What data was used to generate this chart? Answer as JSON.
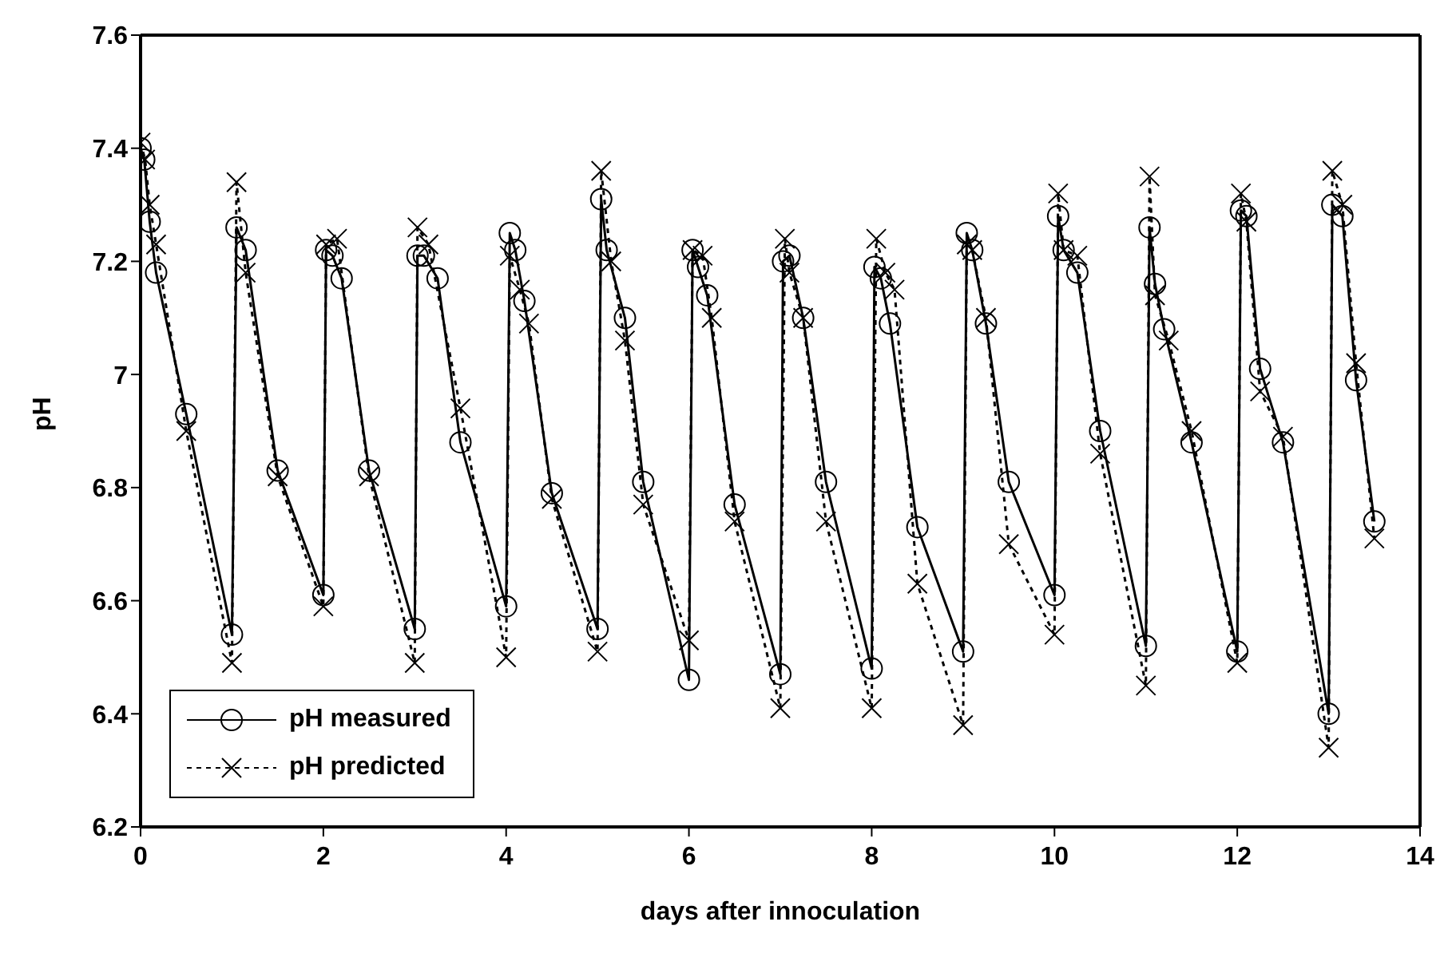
{
  "chart_data": {
    "type": "line",
    "xlabel": "days after innoculation",
    "ylabel": "pH",
    "xlim": [
      0,
      14
    ],
    "xticks": [
      0,
      2,
      4,
      6,
      8,
      10,
      12,
      14
    ],
    "ylim": [
      6.2,
      7.6
    ],
    "yticks": [
      6.2,
      6.4,
      6.6,
      6.8,
      7,
      7.2,
      7.4,
      7.6
    ],
    "legend": "bottom left",
    "series": [
      {
        "name": "pH measured",
        "color": "#000000",
        "marker": "circle",
        "line_style": "solid",
        "x": [
          0,
          0.04,
          0.1,
          0.17,
          0.5,
          1.0,
          1.05,
          1.15,
          1.5,
          2.0,
          2.03,
          2.1,
          2.2,
          2.5,
          3.0,
          3.03,
          3.1,
          3.25,
          3.5,
          4.0,
          4.04,
          4.1,
          4.2,
          4.5,
          5.0,
          5.04,
          5.1,
          5.3,
          5.5,
          6.0,
          6.04,
          6.1,
          6.2,
          6.5,
          7.0,
          7.03,
          7.1,
          7.25,
          7.5,
          8.0,
          8.03,
          8.1,
          8.2,
          8.5,
          9.0,
          9.04,
          9.1,
          9.25,
          9.5,
          10.0,
          10.04,
          10.1,
          10.25,
          10.5,
          11.0,
          11.04,
          11.1,
          11.2,
          11.5,
          12.0,
          12.04,
          12.1,
          12.25,
          12.5,
          13.0,
          13.04,
          13.15,
          13.3,
          13.5
        ],
        "values": [
          7.4,
          7.38,
          7.27,
          7.18,
          6.93,
          6.54,
          7.26,
          7.22,
          6.83,
          6.61,
          7.22,
          7.21,
          7.17,
          6.83,
          6.55,
          7.21,
          7.21,
          7.17,
          6.88,
          6.59,
          7.25,
          7.22,
          7.13,
          6.79,
          6.55,
          7.31,
          7.22,
          7.1,
          6.81,
          6.46,
          7.22,
          7.19,
          7.14,
          6.77,
          6.47,
          7.2,
          7.21,
          7.1,
          6.81,
          6.48,
          7.19,
          7.17,
          7.09,
          6.73,
          6.51,
          7.25,
          7.22,
          7.09,
          6.81,
          6.61,
          7.28,
          7.22,
          7.18,
          6.9,
          6.52,
          7.26,
          7.16,
          7.08,
          6.88,
          6.51,
          7.29,
          7.28,
          7.01,
          6.88,
          6.4,
          7.3,
          7.28,
          6.99,
          6.74
        ]
      },
      {
        "name": "pH predicted",
        "color": "#000000",
        "marker": "cross",
        "line_style": "dotted",
        "x": [
          0,
          0.05,
          0.1,
          0.17,
          0.5,
          1.0,
          1.05,
          1.15,
          1.5,
          2.0,
          2.03,
          2.15,
          2.5,
          3.0,
          3.03,
          3.15,
          3.5,
          4.0,
          4.04,
          4.15,
          4.25,
          4.5,
          5.0,
          5.04,
          5.15,
          5.3,
          5.5,
          6.0,
          6.04,
          6.15,
          6.25,
          6.5,
          7.0,
          7.05,
          7.1,
          7.25,
          7.5,
          8.0,
          8.05,
          8.15,
          8.25,
          8.5,
          9.0,
          9.04,
          9.1,
          9.25,
          9.5,
          10.0,
          10.04,
          10.1,
          10.25,
          10.5,
          11.0,
          11.04,
          11.1,
          11.25,
          11.5,
          12.0,
          12.04,
          12.1,
          12.25,
          12.5,
          13.0,
          13.04,
          13.15,
          13.3,
          13.5
        ],
        "values": [
          7.41,
          7.38,
          7.3,
          7.23,
          6.9,
          6.49,
          7.34,
          7.18,
          6.82,
          6.59,
          7.23,
          7.24,
          6.82,
          6.49,
          7.26,
          7.23,
          6.94,
          6.5,
          7.21,
          7.15,
          7.09,
          6.78,
          6.51,
          7.36,
          7.2,
          7.06,
          6.77,
          6.53,
          7.22,
          7.21,
          7.1,
          6.74,
          6.41,
          7.24,
          7.18,
          7.1,
          6.74,
          6.41,
          7.24,
          7.18,
          7.15,
          6.63,
          6.38,
          7.23,
          7.22,
          7.1,
          6.7,
          6.54,
          7.32,
          7.22,
          7.21,
          6.86,
          6.45,
          7.35,
          7.14,
          7.06,
          6.9,
          6.49,
          7.32,
          7.27,
          6.97,
          6.89,
          6.34,
          7.36,
          7.3,
          7.02,
          6.71
        ]
      }
    ]
  }
}
